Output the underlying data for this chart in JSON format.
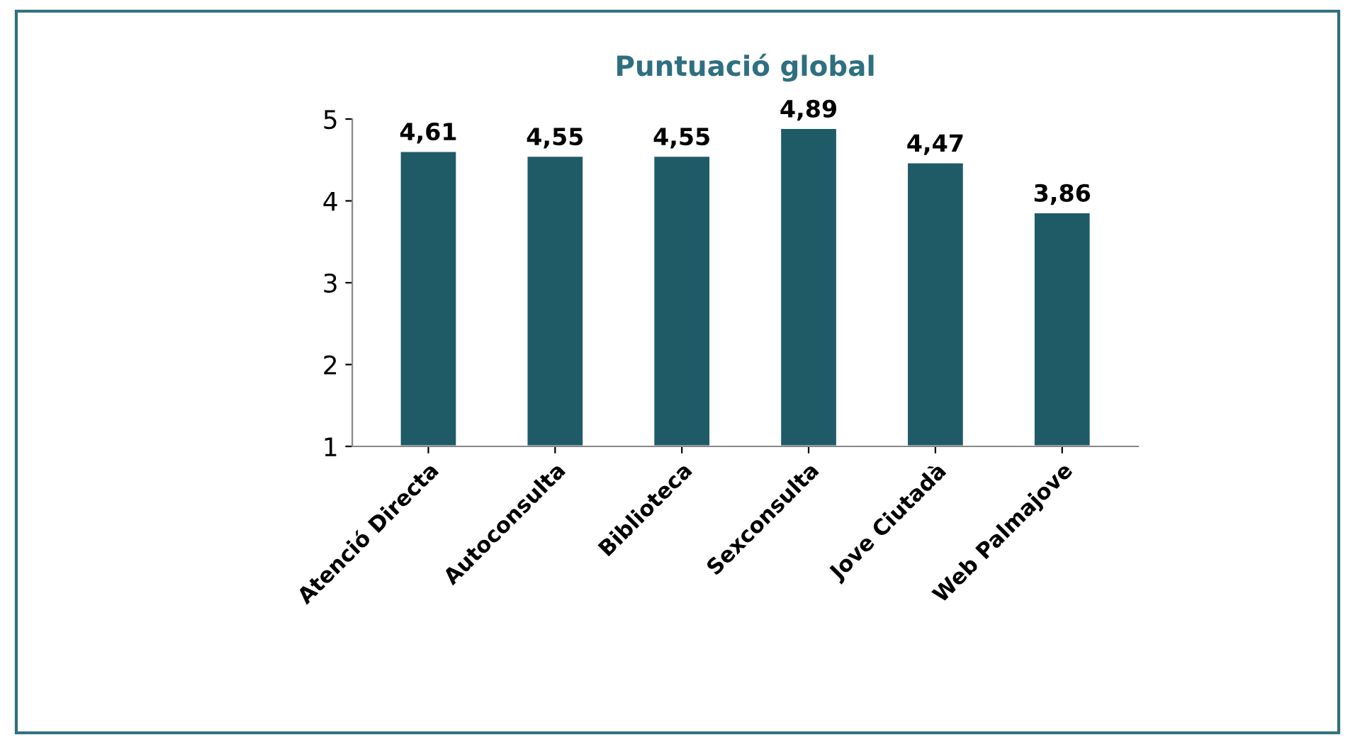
{
  "chart_data": {
    "type": "bar",
    "title": "Puntuació global",
    "categories": [
      "Atenció Directa",
      "Autoconsulta",
      "Biblioteca",
      "Sexconsulta",
      "Jove Ciutadà",
      "Web Palmajove"
    ],
    "values": [
      4.61,
      4.55,
      4.55,
      4.89,
      4.47,
      3.86
    ],
    "value_labels": [
      "4,61",
      "4,55",
      "4,55",
      "4,89",
      "4,47",
      "3,86"
    ],
    "color": "#1f5b67",
    "ylim": [
      1,
      5
    ],
    "yticks": [
      1,
      2,
      3,
      4,
      5
    ],
    "grid": false,
    "legend": false
  }
}
